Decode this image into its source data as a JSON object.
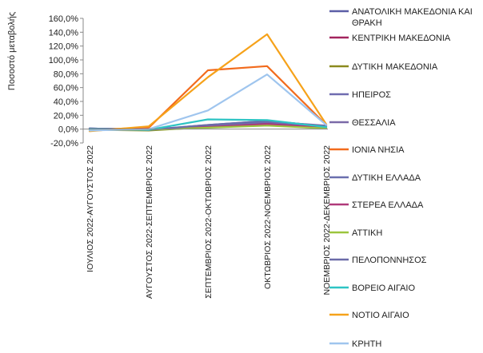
{
  "chart_data": {
    "type": "line",
    "title": "",
    "xlabel": "",
    "ylabel": "Ποσοστό μεταβολής",
    "categories": [
      "ΙΟΥΛΙΟΣ 2022-ΑΥΓΟΥΣΤΟΣ 2022",
      "ΑΥΓΟΥΣΤΟΣ 2022-ΣΕΠΤΕΜΒΡΙΟΣ 2022",
      "ΣΕΠΤΕΜΒΡΙΟΣ 2022-ΟΚΤΩΒΡΙΟΣ 2022",
      "ΟΚΤΩΒΡΙΟΣ 2022-ΝΟΕΜΒΡΙΟΣ 2022",
      "ΝΟΕΜΒΡΙΟΣ 2022-ΔΕΚΕΜΒΡΙΟΣ 2022"
    ],
    "ylim": [
      -20,
      160
    ],
    "yticks": [
      "-20,0%",
      "0,0%",
      "20,0%",
      "40,0%",
      "60,0%",
      "80,0%",
      "100,0%",
      "120,0%",
      "140,0%",
      "160,0%"
    ],
    "grid": false,
    "legend_position": "right",
    "series": [
      {
        "name": "ΑΝΑΤΟΛΙΚΗ ΜΑΚΕΔΟΝΙΑ ΚΑΙ ΘΡΑΚΗ",
        "color": "#5b5ea6",
        "values": [
          1,
          -1,
          4,
          9,
          3
        ]
      },
      {
        "name": "ΚΕΝΤΡΙΚΗ ΜΑΚΕΔΟΝΙΑ",
        "color": "#a3245e",
        "values": [
          0,
          -1,
          4,
          8,
          2
        ]
      },
      {
        "name": "ΔΥΤΙΚΗ ΜΑΚΕΔΟΝΙΑ",
        "color": "#8b8a1e",
        "values": [
          -1,
          -2,
          3,
          6,
          2
        ]
      },
      {
        "name": "ΗΠΕΙΡΟΣ",
        "color": "#6f6cb0",
        "values": [
          0,
          -1,
          5,
          10,
          4
        ]
      },
      {
        "name": "ΘΕΣΣΑΛΙΑ",
        "color": "#7a6aa8",
        "values": [
          0,
          -1,
          5,
          11,
          5
        ]
      },
      {
        "name": "ΙΟΝΙΑ ΝΗΣΙΑ",
        "color": "#f26b1d",
        "values": [
          -1,
          2,
          85,
          91,
          6
        ]
      },
      {
        "name": "ΔΥΤΙΚΗ ΕΛΛΑΔΑ",
        "color": "#6a6fae",
        "values": [
          1,
          -1,
          6,
          12,
          4
        ]
      },
      {
        "name": "ΣΤΕΡΕΑ ΕΛΛΑΔΑ",
        "color": "#b03a7a",
        "values": [
          0,
          0,
          3,
          7,
          2
        ]
      },
      {
        "name": "ΑΤΤΙΚΗ",
        "color": "#9bc53d",
        "values": [
          0,
          -1,
          2,
          5,
          1
        ]
      },
      {
        "name": "ΠΕΛΟΠΟΝΝΗΣΟΣ",
        "color": "#6b6ba8",
        "values": [
          1,
          -1,
          6,
          12,
          4
        ]
      },
      {
        "name": "ΒΟΡΕΙΟ ΑΙΓΑΙΟ",
        "color": "#2ec4c4",
        "values": [
          0,
          -1,
          14,
          13,
          3
        ]
      },
      {
        "name": "ΝΟΤΙΟ ΑΙΓΑΙΟ",
        "color": "#f6a21a",
        "values": [
          -3,
          4,
          75,
          137,
          7
        ]
      },
      {
        "name": "ΚΡΗΤΗ",
        "color": "#9fc5ee",
        "values": [
          -2,
          0,
          27,
          79,
          6
        ]
      }
    ]
  }
}
